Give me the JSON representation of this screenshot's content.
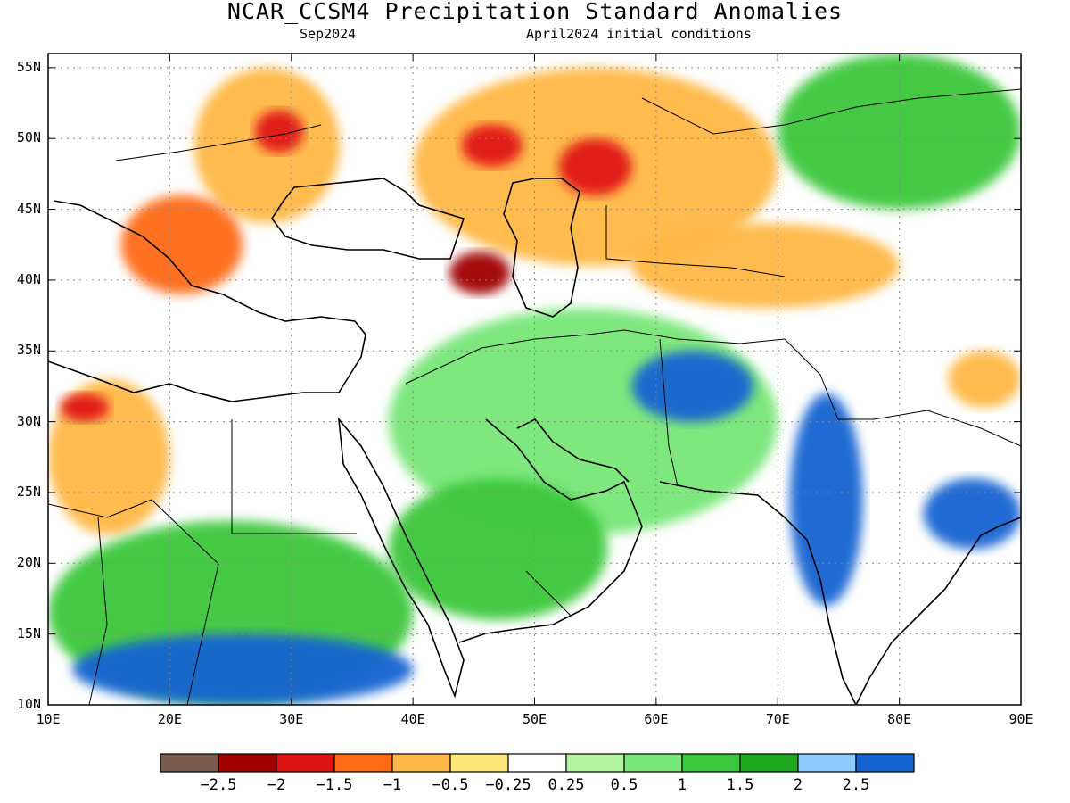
{
  "title": "NCAR_CCSM4 Precipitation Standard Anomalies",
  "subtitle_left": "Sep2024",
  "subtitle_right": "April2024 initial conditions",
  "map": {
    "extent": {
      "lon": [
        10,
        90
      ],
      "lat": [
        10,
        56
      ]
    },
    "lat_labels": [
      "55N",
      "50N",
      "45N",
      "40N",
      "35N",
      "30N",
      "25N",
      "20N",
      "15N",
      "10N"
    ],
    "lat_values": [
      55,
      50,
      45,
      40,
      35,
      30,
      25,
      20,
      15,
      10
    ],
    "lon_labels": [
      "10E",
      "20E",
      "30E",
      "40E",
      "50E",
      "60E",
      "70E",
      "80E",
      "90E"
    ],
    "lon_values": [
      10,
      20,
      30,
      40,
      50,
      60,
      70,
      80,
      90
    ],
    "gridlines": "dotted",
    "anomaly_regions": [
      {
        "name": "central-europe-dry",
        "level": -1,
        "lon": [
          22,
          34
        ],
        "lat": [
          44,
          55
        ]
      },
      {
        "name": "ukraine-dry-core",
        "level": -2,
        "lon": [
          27,
          31
        ],
        "lat": [
          49,
          52
        ]
      },
      {
        "name": "balkans-dry",
        "level": -1.5,
        "lon": [
          16,
          26
        ],
        "lat": [
          39,
          46
        ]
      },
      {
        "name": "russia-kazakh-dry",
        "level": -1,
        "lon": [
          40,
          70
        ],
        "lat": [
          41,
          55
        ]
      },
      {
        "name": "volga-dry-core",
        "level": -2,
        "lon": [
          44,
          49
        ],
        "lat": [
          48,
          51
        ]
      },
      {
        "name": "kazakh-dry-core",
        "level": -2,
        "lon": [
          52,
          58
        ],
        "lat": [
          46,
          50
        ]
      },
      {
        "name": "caucasus-dry-core",
        "level": -2.5,
        "lon": [
          43,
          48
        ],
        "lat": [
          39,
          42
        ]
      },
      {
        "name": "central-asia-dry",
        "level": -1,
        "lon": [
          58,
          80
        ],
        "lat": [
          38,
          44
        ]
      },
      {
        "name": "north-africa-dry",
        "level": -1,
        "lon": [
          10,
          20
        ],
        "lat": [
          22,
          33
        ]
      },
      {
        "name": "libya-dry-core",
        "level": -2,
        "lon": [
          11,
          15
        ],
        "lat": [
          30,
          32
        ]
      },
      {
        "name": "china-dry",
        "level": -1,
        "lon": [
          84,
          90
        ],
        "lat": [
          31,
          35
        ]
      },
      {
        "name": "siberia-wet",
        "level": 1.5,
        "lon": [
          70,
          90
        ],
        "lat": [
          45,
          56
        ]
      },
      {
        "name": "middle-east-wet",
        "level": 1,
        "lon": [
          38,
          70
        ],
        "lat": [
          22,
          38
        ]
      },
      {
        "name": "pakistan-wet",
        "level": 2.5,
        "lon": [
          58,
          68
        ],
        "lat": [
          30,
          35
        ]
      },
      {
        "name": "india-wet",
        "level": 2.5,
        "lon": [
          71,
          77
        ],
        "lat": [
          17,
          32
        ]
      },
      {
        "name": "saudi-wet",
        "level": 1.5,
        "lon": [
          38,
          56
        ],
        "lat": [
          16,
          26
        ]
      },
      {
        "name": "sahel-wet",
        "level": 1.5,
        "lon": [
          10,
          40
        ],
        "lat": [
          10,
          23
        ]
      },
      {
        "name": "sahel-wet-core",
        "level": 2.5,
        "lon": [
          12,
          40
        ],
        "lat": [
          10,
          15
        ]
      },
      {
        "name": "bengal-wet",
        "level": 2.5,
        "lon": [
          82,
          90
        ],
        "lat": [
          21,
          26
        ]
      }
    ]
  },
  "colorbar": {
    "colors": [
      "#7a5a4a",
      "#a00000",
      "#e01414",
      "#ff6a14",
      "#ffb845",
      "#ffe478",
      "#ffffff",
      "#b4f4a0",
      "#78e678",
      "#3cc83c",
      "#1eaa1e",
      "#8ccaff",
      "#1464d2"
    ],
    "labels": [
      "−2.5",
      "−2",
      "−1.5",
      "−1",
      "−0.5",
      "−0.25",
      "0.25",
      "0.5",
      "1",
      "1.5",
      "2",
      "2.5"
    ]
  }
}
